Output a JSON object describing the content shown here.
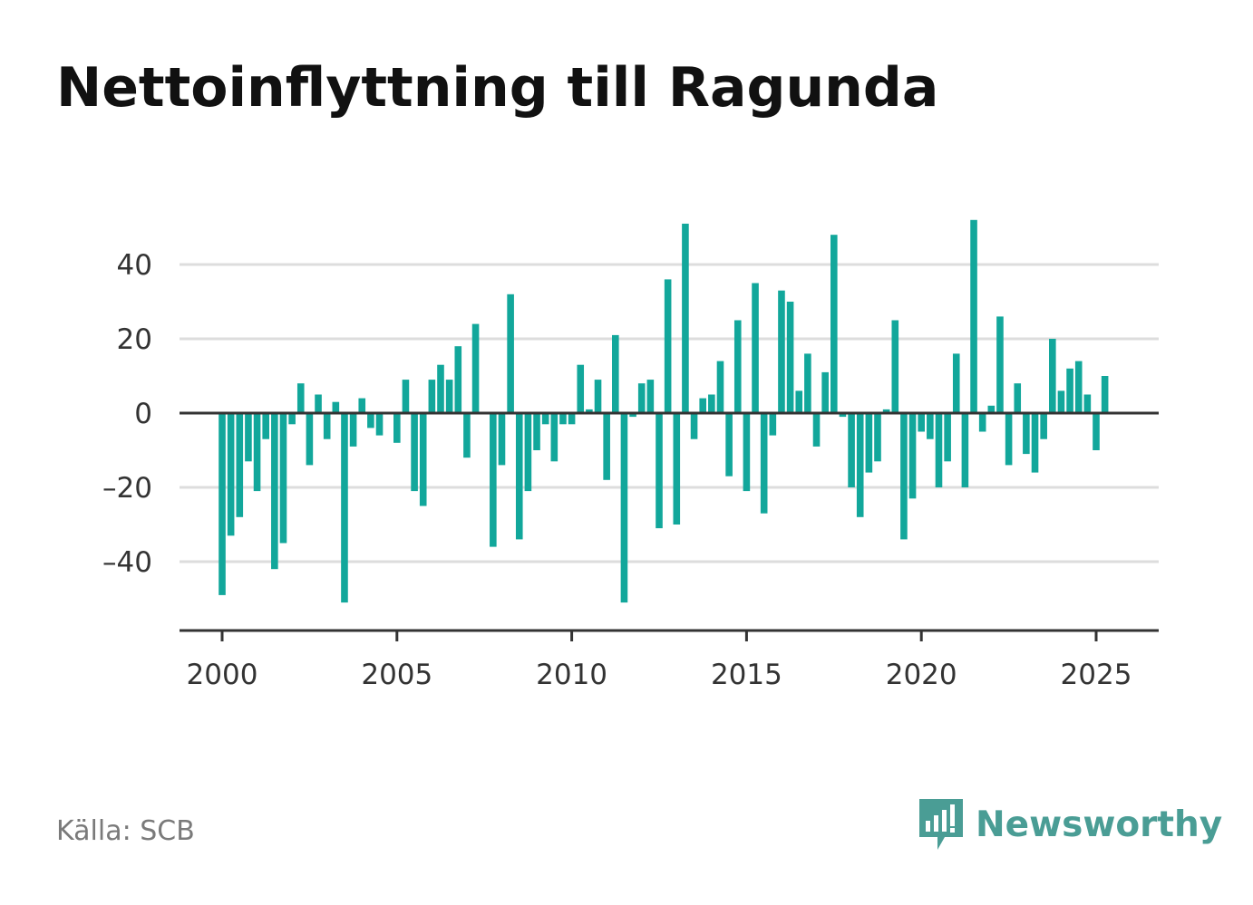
{
  "title": "Nettoinflyttning till Ragunda",
  "source": "Källa: SCB",
  "brand": {
    "name": "Newsworthy",
    "icon": "newsworthy-logo-icon",
    "color": "#4a9d95"
  },
  "colors": {
    "bar": "#12a79b",
    "grid": "#dddddd",
    "axis": "#333333"
  },
  "chart_data": {
    "type": "bar",
    "title": "Nettoinflyttning till Ragunda",
    "xlabel": "",
    "ylabel": "",
    "x_start": 2000,
    "x_step": 0.25,
    "xlim": [
      1997.5,
      2027.5
    ],
    "ylim": [
      -58,
      56
    ],
    "x_ticks": [
      2000,
      2005,
      2010,
      2015,
      2020,
      2025
    ],
    "y_ticks": [
      -40,
      -20,
      0,
      20,
      40
    ],
    "y_tick_labels": [
      "–40",
      "–20",
      "0",
      "20",
      "40"
    ],
    "grid": true,
    "values": [
      -49,
      -33,
      -28,
      -13,
      -21,
      -7,
      -42,
      -35,
      -3,
      8,
      -14,
      5,
      -7,
      3,
      -51,
      -9,
      4,
      -4,
      -6,
      0,
      -8,
      9,
      -21,
      -25,
      9,
      13,
      9,
      18,
      -12,
      24,
      0,
      -36,
      -14,
      32,
      -34,
      -21,
      -10,
      -3,
      -13,
      -3,
      -3,
      13,
      1,
      9,
      -18,
      21,
      -51,
      -1,
      8,
      9,
      -31,
      36,
      -30,
      51,
      -7,
      4,
      5,
      14,
      -17,
      25,
      -21,
      35,
      -27,
      -6,
      33,
      30,
      6,
      16,
      -9,
      11,
      48,
      -1,
      -20,
      -28,
      -16,
      -13,
      1,
      25,
      -34,
      -23,
      -5,
      -7,
      -20,
      -13,
      16,
      -20,
      52,
      -5,
      2,
      26,
      -14,
      8,
      -11,
      -16,
      -7,
      20,
      6,
      12,
      14,
      5,
      -10,
      10
    ]
  }
}
